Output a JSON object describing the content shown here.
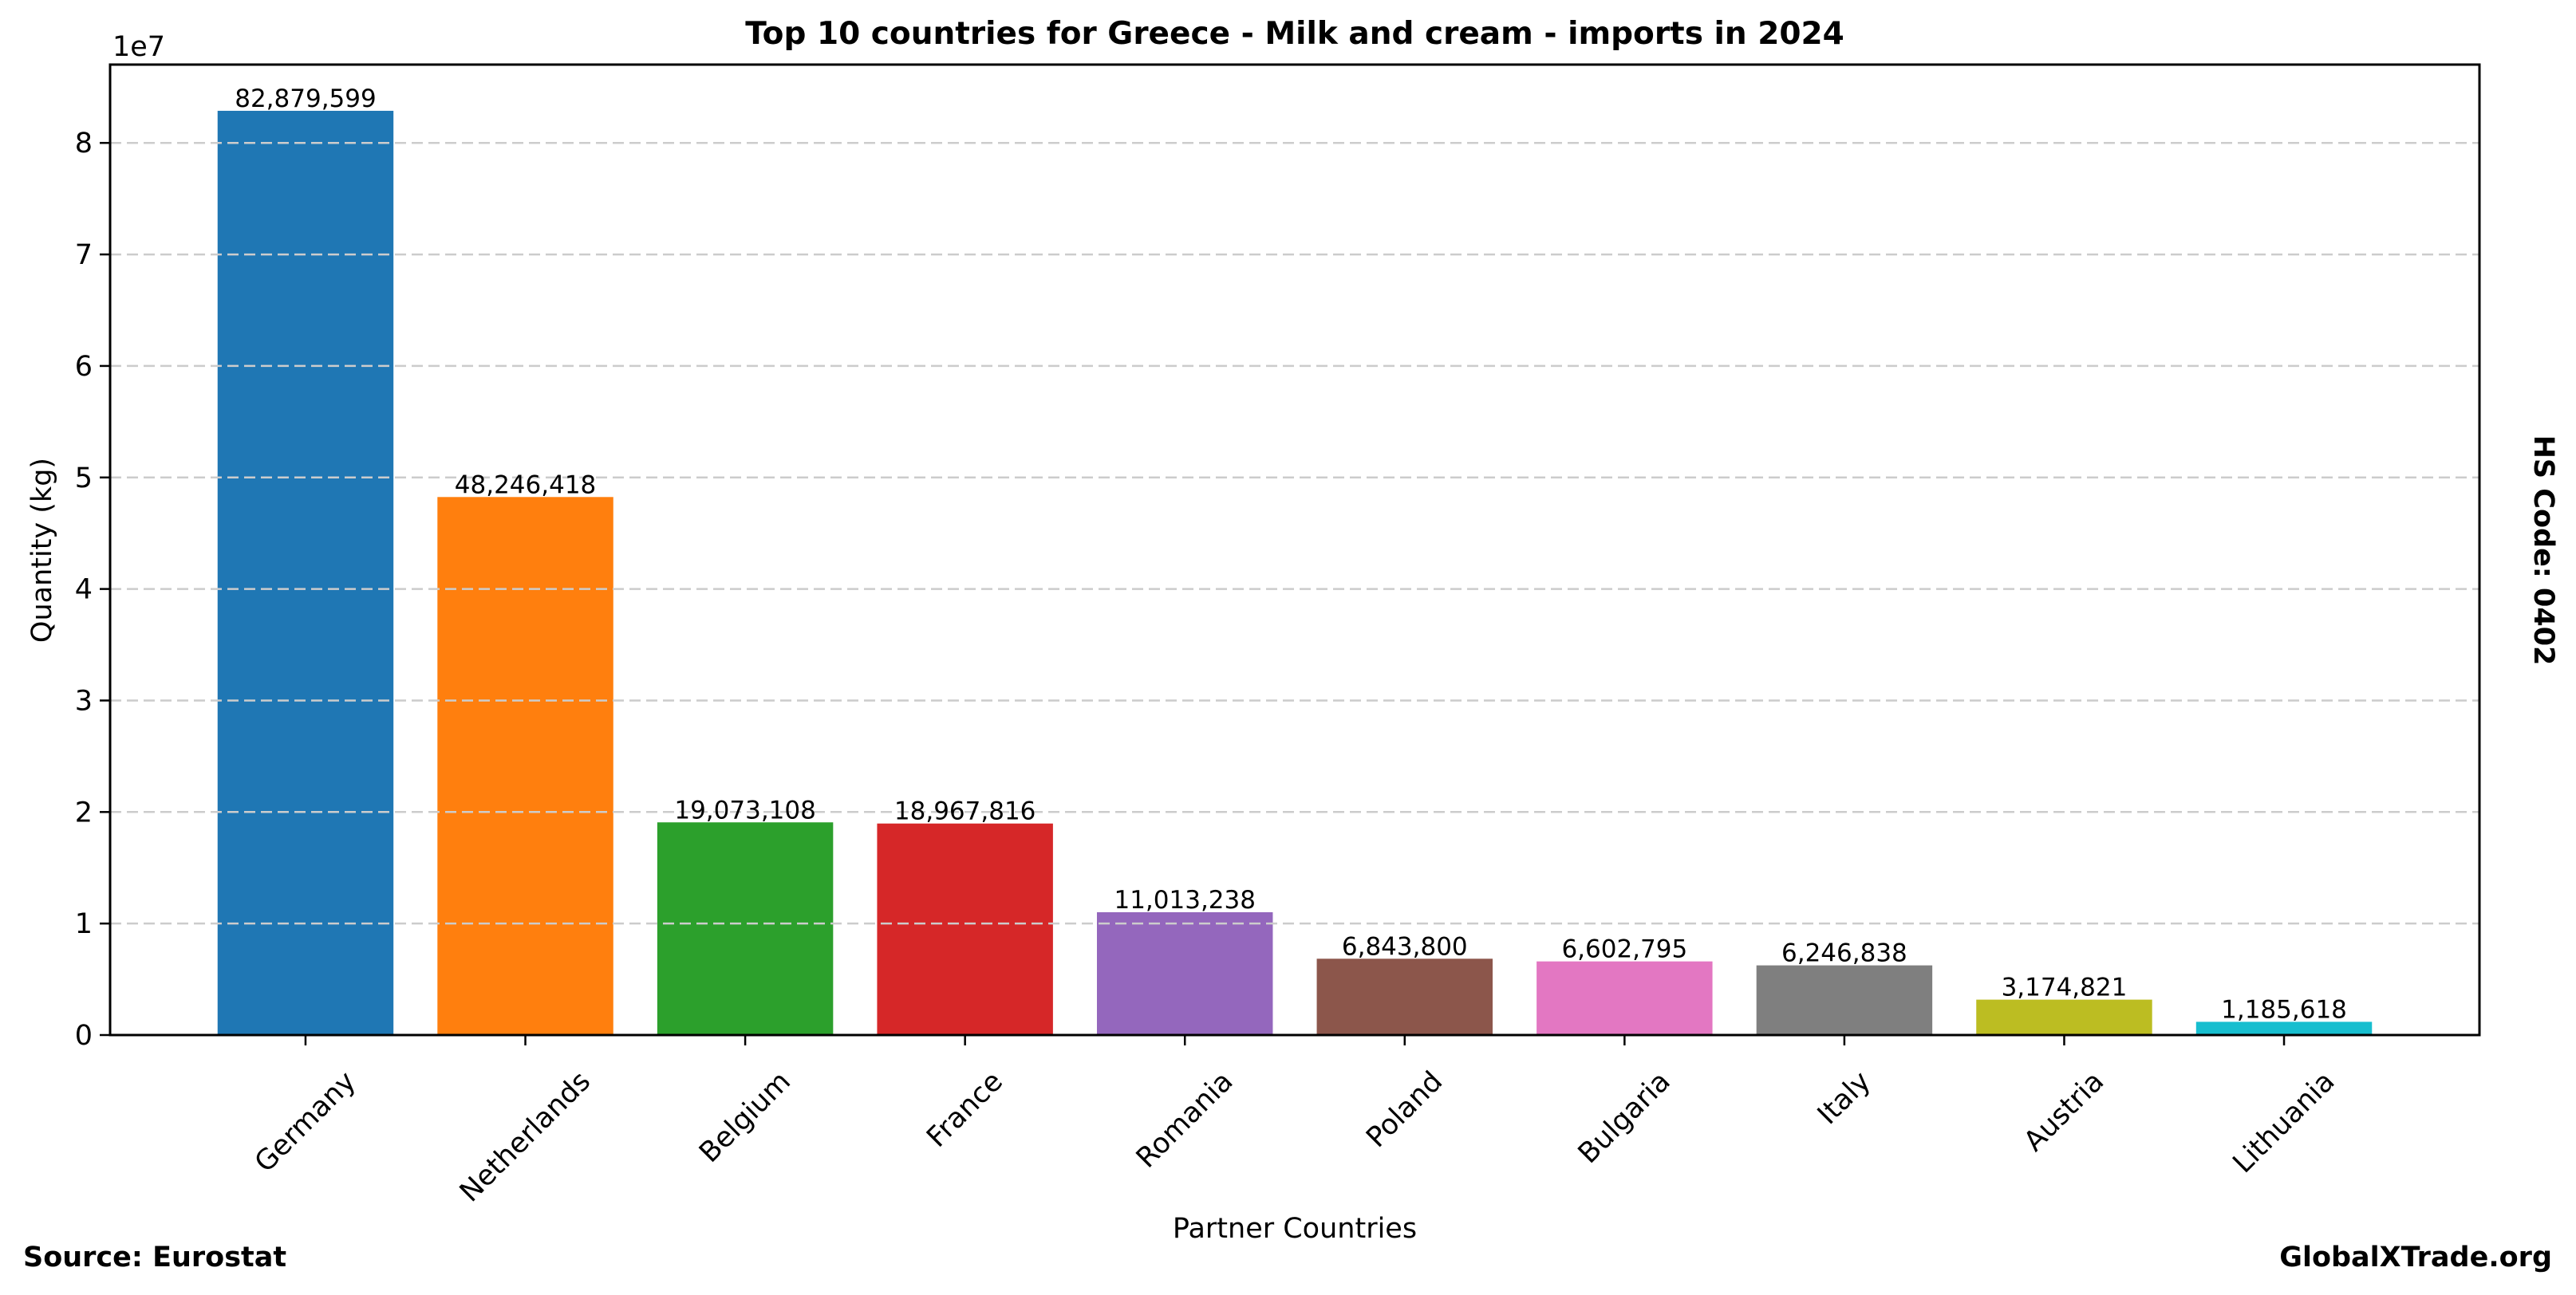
{
  "chart_data": {
    "type": "bar",
    "title": "Top 10 countries for Greece - Milk and cream - imports in 2024",
    "xlabel": "Partner Countries",
    "ylabel": "Quantity (kg)",
    "y_offset_label": "1e7",
    "y_scale": 10000000,
    "ylim": [
      0,
      87023579
    ],
    "yticks": [
      0,
      10000000,
      20000000,
      30000000,
      40000000,
      50000000,
      60000000,
      70000000,
      80000000
    ],
    "ytick_labels": [
      "0",
      "1",
      "2",
      "3",
      "4",
      "5",
      "6",
      "7",
      "8"
    ],
    "grid": "y-dashed",
    "categories": [
      "Germany",
      "Netherlands",
      "Belgium",
      "France",
      "Romania",
      "Poland",
      "Bulgaria",
      "Italy",
      "Austria",
      "Lithuania"
    ],
    "values": [
      82879599,
      48246418,
      19073108,
      18967816,
      11013238,
      6843800,
      6602795,
      6246838,
      3174821,
      1185618
    ],
    "value_labels": [
      "82,879,599",
      "48,246,418",
      "19,073,108",
      "18,967,816",
      "11,013,238",
      "6,843,800",
      "6,602,795",
      "6,246,838",
      "3,174,821",
      "1,185,618"
    ],
    "colors": [
      "#1f77b4",
      "#ff7f0e",
      "#2ca02c",
      "#d62728",
      "#9467bd",
      "#8c564b",
      "#e377c2",
      "#7f7f7f",
      "#bcbd22",
      "#17becf"
    ],
    "xtick_rotation_deg": 45
  },
  "annotations": {
    "source": "Source: Eurostat",
    "brand": "GlobalXTrade.org",
    "hs_code": "HS Code: 0402"
  }
}
